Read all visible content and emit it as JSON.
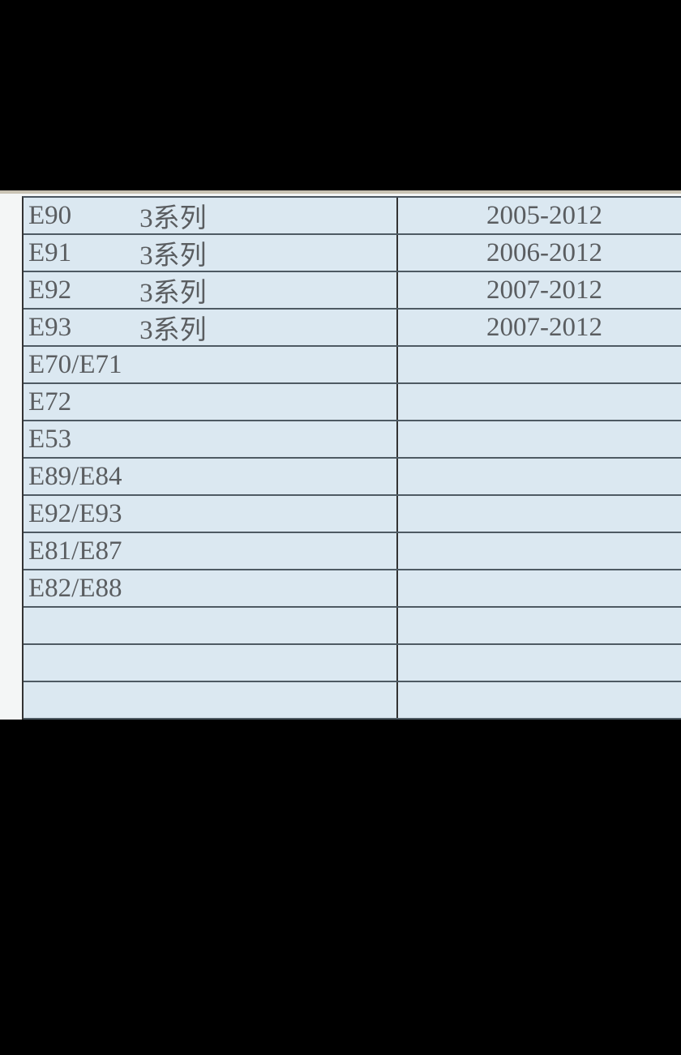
{
  "table": {
    "rows": [
      {
        "model": "E90",
        "series": "3系列",
        "years": "2005-2012"
      },
      {
        "model": "E91",
        "series": "3系列",
        "years": "2006-2012"
      },
      {
        "model": "E92",
        "series": "3系列",
        "years": "2007-2012"
      },
      {
        "model": "E93",
        "series": "3系列",
        "years": "2007-2012"
      },
      {
        "model": "E70/E71",
        "series": "",
        "years": ""
      },
      {
        "model": "E72",
        "series": "",
        "years": ""
      },
      {
        "model": "E53",
        "series": "",
        "years": ""
      },
      {
        "model": "E89/E84",
        "series": "",
        "years": ""
      },
      {
        "model": "E92/E93",
        "series": "",
        "years": ""
      },
      {
        "model": "E81/E87",
        "series": "",
        "years": ""
      },
      {
        "model": "E82/E88",
        "series": "",
        "years": ""
      },
      {
        "model": "",
        "series": "",
        "years": ""
      },
      {
        "model": "",
        "series": "",
        "years": ""
      },
      {
        "model": "",
        "series": "",
        "years": ""
      }
    ]
  },
  "colors": {
    "cell_background": "#dbe8f1",
    "text": "#5a5d60",
    "grid": "#4e5a63"
  }
}
